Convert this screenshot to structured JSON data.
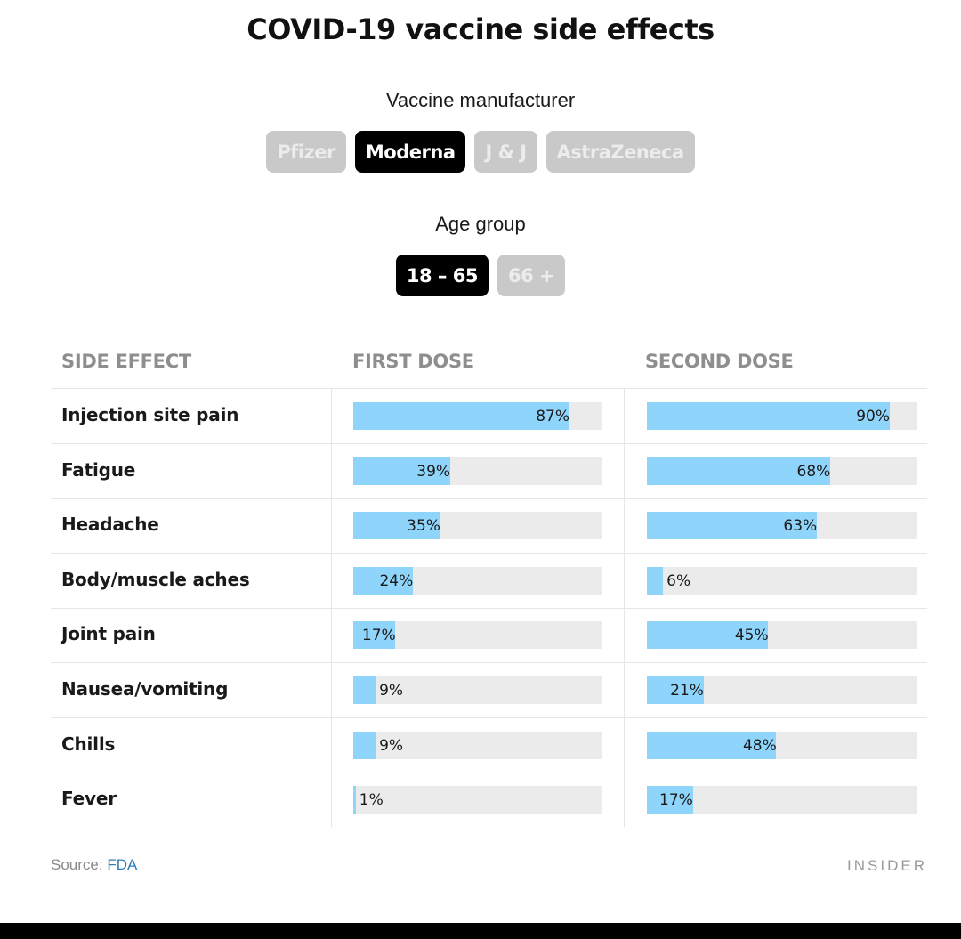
{
  "chart_data": {
    "type": "bar",
    "title": "COVID-19 vaccine side effects",
    "categories": [
      "Injection site pain",
      "Fatigue",
      "Headache",
      "Body/muscle aches",
      "Joint pain",
      "Nausea/vomiting",
      "Chills",
      "Fever"
    ],
    "series": [
      {
        "name": "FIRST DOSE",
        "values": [
          87,
          39,
          35,
          24,
          17,
          9,
          9,
          1
        ]
      },
      {
        "name": "SECOND DOSE",
        "values": [
          90,
          68,
          63,
          6,
          45,
          21,
          48,
          17
        ]
      }
    ],
    "value_suffix": "%",
    "xlim": [
      0,
      100
    ],
    "orientation": "horizontal",
    "grid": false
  },
  "filters": {
    "manufacturer_label": "Vaccine manufacturer",
    "manufacturers": [
      "Pfizer",
      "Moderna",
      "J & J",
      "AstraZeneca"
    ],
    "manufacturer_selected": "Moderna",
    "age_label": "Age group",
    "ages": [
      "18 – 65",
      "66 +"
    ],
    "age_selected": "18 – 65"
  },
  "table": {
    "col_side_effect": "SIDE EFFECT",
    "col_first": "FIRST DOSE",
    "col_second": "SECOND DOSE"
  },
  "footer": {
    "source_prefix": "Source: ",
    "source_name": "FDA",
    "brand": "INSIDER"
  },
  "colors": {
    "bar_fill": "#8fd4fb",
    "bar_track": "#ebebeb",
    "button_active": "#000000",
    "button_inactive": "#c9c9c9"
  }
}
